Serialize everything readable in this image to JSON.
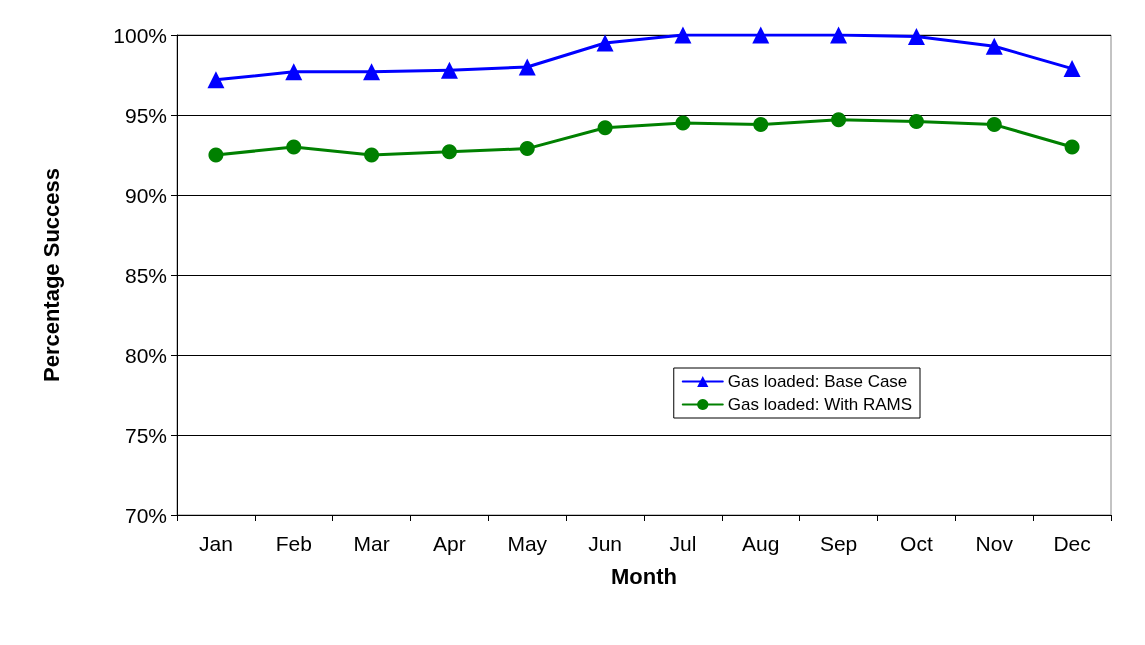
{
  "chart_data": {
    "type": "line",
    "xlabel": "Month",
    "ylabel": "Percentage Success",
    "categories": [
      "Jan",
      "Feb",
      "Mar",
      "Apr",
      "May",
      "Jun",
      "Jul",
      "Aug",
      "Sep",
      "Oct",
      "Nov",
      "Dec"
    ],
    "series": [
      {
        "name": "Gas loaded: Base Case",
        "color": "#0000ff",
        "marker": "triangle",
        "values": [
          97.2,
          97.7,
          97.7,
          97.8,
          98.0,
          99.5,
          100.0,
          100.0,
          100.0,
          99.9,
          99.3,
          97.9
        ]
      },
      {
        "name": "Gas loaded: With RAMS",
        "color": "#008000",
        "marker": "circle",
        "values": [
          92.5,
          93.0,
          92.5,
          92.7,
          92.9,
          94.2,
          94.5,
          94.4,
          94.7,
          94.6,
          94.4,
          93.0
        ]
      }
    ],
    "ylim": [
      70,
      100
    ],
    "yticks": [
      {
        "value": 70,
        "label": "70%"
      },
      {
        "value": 75,
        "label": "75%"
      },
      {
        "value": 80,
        "label": "80%"
      },
      {
        "value": 85,
        "label": "85%"
      },
      {
        "value": 90,
        "label": "90%"
      },
      {
        "value": 95,
        "label": "95%"
      },
      {
        "value": 100,
        "label": "100%"
      }
    ],
    "grid": "y",
    "legend": "right",
    "line_style": "solid"
  }
}
